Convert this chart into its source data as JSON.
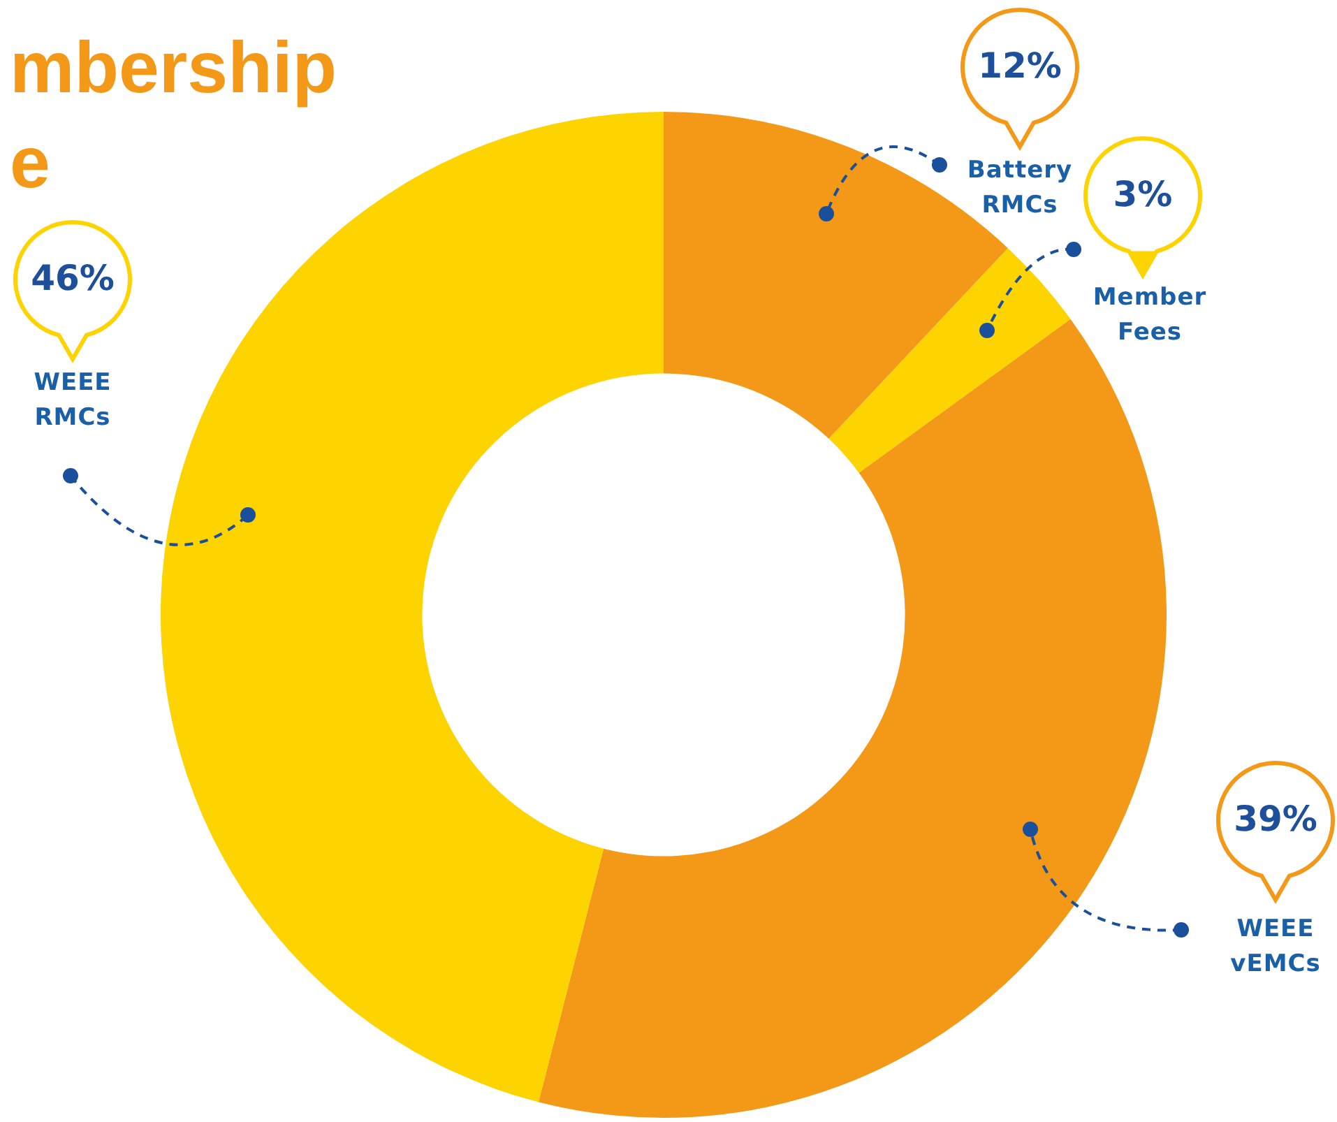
{
  "chart_data": {
    "type": "donut",
    "title": "mbership\ne",
    "categories": [
      "Battery RMCs",
      "Member Fees",
      "WEEE vEMCs",
      "WEEE RMCs"
    ],
    "values": [
      12,
      3,
      39,
      46
    ],
    "colors": [
      "#f39817",
      "#fdd300",
      "#f39817",
      "#fdd300"
    ],
    "value_labels": [
      "12%",
      "3%",
      "39%",
      "46%"
    ],
    "legend": false
  }
}
